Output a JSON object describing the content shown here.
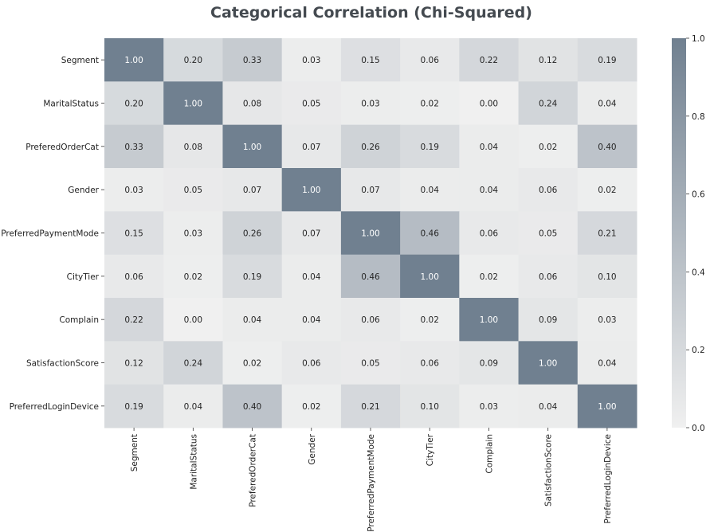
{
  "chart_data": {
    "type": "heatmap",
    "title": "Categorical Correlation (Chi-Squared)",
    "xlabel": "",
    "ylabel": "",
    "x_categories": [
      "Segment",
      "MaritalStatus",
      "PreferedOrderCat",
      "Gender",
      "PreferredPaymentMode",
      "CityTier",
      "Complain",
      "SatisfactionScore",
      "PreferredLoginDevice"
    ],
    "y_categories": [
      "Segment",
      "MaritalStatus",
      "PreferedOrderCat",
      "Gender",
      "PreferredPaymentMode",
      "CityTier",
      "Complain",
      "SatisfactionScore",
      "PreferredLoginDevice"
    ],
    "values": [
      [
        1.0,
        0.2,
        0.33,
        0.03,
        0.15,
        0.06,
        0.22,
        0.12,
        0.19
      ],
      [
        0.2,
        1.0,
        0.08,
        0.05,
        0.03,
        0.02,
        0.0,
        0.24,
        0.04
      ],
      [
        0.33,
        0.08,
        1.0,
        0.07,
        0.26,
        0.19,
        0.04,
        0.02,
        0.4
      ],
      [
        0.03,
        0.05,
        0.07,
        1.0,
        0.07,
        0.04,
        0.04,
        0.06,
        0.02
      ],
      [
        0.15,
        0.03,
        0.26,
        0.07,
        1.0,
        0.46,
        0.06,
        0.05,
        0.21
      ],
      [
        0.06,
        0.02,
        0.19,
        0.04,
        0.46,
        1.0,
        0.02,
        0.06,
        0.1
      ],
      [
        0.22,
        0.0,
        0.04,
        0.04,
        0.06,
        0.02,
        1.0,
        0.09,
        0.03
      ],
      [
        0.12,
        0.24,
        0.02,
        0.06,
        0.05,
        0.06,
        0.09,
        1.0,
        0.04
      ],
      [
        0.19,
        0.04,
        0.4,
        0.02,
        0.21,
        0.1,
        0.03,
        0.04,
        1.0
      ]
    ],
    "value_format": "2 decimals",
    "colorbar": {
      "range": [
        0.0,
        1.0
      ],
      "ticks": [
        0.0,
        0.2,
        0.4,
        0.6,
        0.8,
        1.0
      ],
      "tick_labels": [
        "0.0",
        "0.2",
        "0.4",
        "0.6",
        "0.8",
        "1.0"
      ],
      "color_low": "#f0f0f0",
      "color_high": "#708090"
    },
    "annotation_colors": {
      "dark_text": "#262626",
      "light_text": "#ffffff"
    }
  }
}
